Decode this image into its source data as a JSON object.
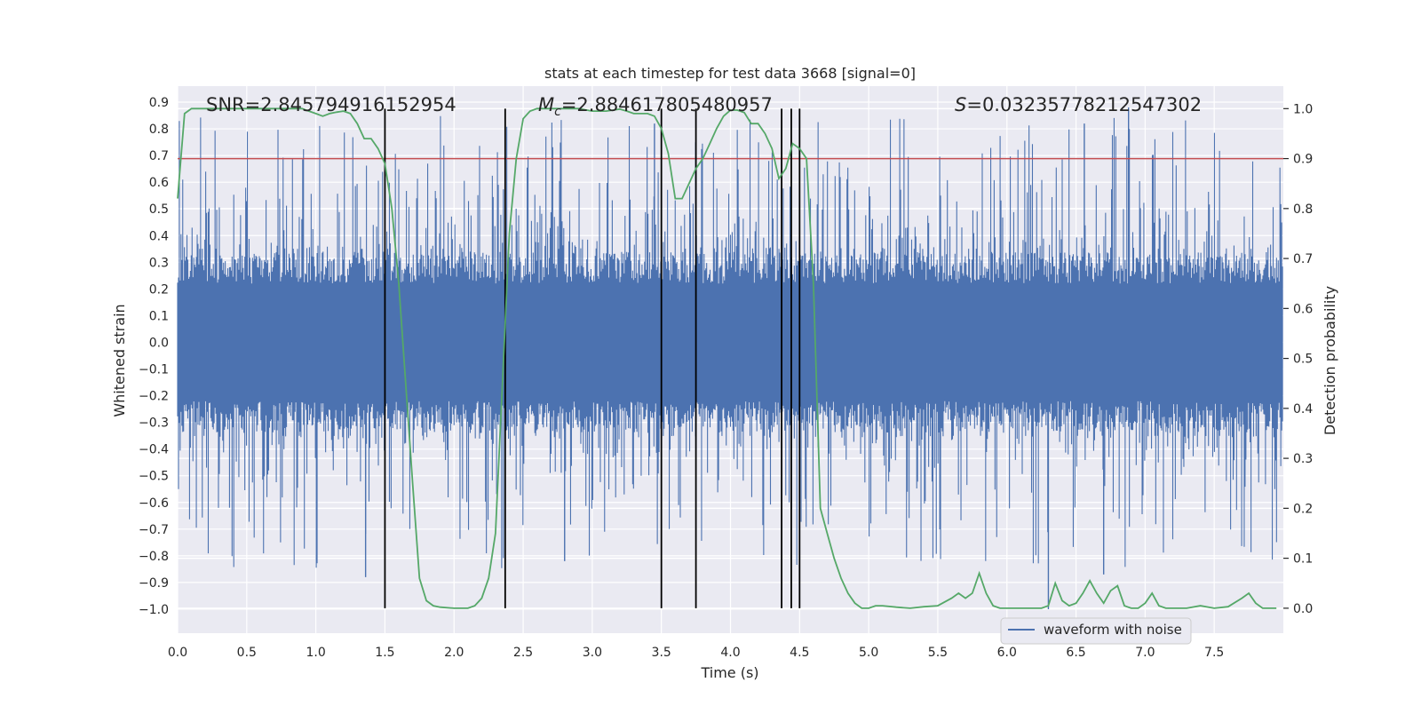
{
  "chart_data": {
    "type": "line",
    "title": "stats at each timestep for test data 3668 [signal=0]",
    "xlabel": "Time (s)",
    "ylabel_left": "Whitened strain",
    "ylabel_right": "Detection probability",
    "xlim": [
      0,
      8
    ],
    "ylim_left": [
      -1.09,
      0.96
    ],
    "ylim_right": [
      -0.05,
      1.045
    ],
    "xticks": [
      "0.0",
      "0.5",
      "1.0",
      "1.5",
      "2.0",
      "2.5",
      "3.0",
      "3.5",
      "4.0",
      "4.5",
      "5.0",
      "5.5",
      "6.0",
      "6.5",
      "7.0",
      "7.5"
    ],
    "yticks_left": [
      "0.9",
      "0.8",
      "0.7",
      "0.6",
      "0.5",
      "0.4",
      "0.3",
      "0.2",
      "0.1",
      "0.0",
      "-0.1",
      "-0.2",
      "-0.3",
      "-0.4",
      "-0.5",
      "-0.6",
      "-0.7",
      "-0.8",
      "-0.9",
      "-1.0"
    ],
    "yticks_right": [
      "1.0",
      "0.9",
      "0.8",
      "0.7",
      "0.6",
      "0.5",
      "0.4",
      "0.3",
      "0.2",
      "0.1",
      "0.0"
    ],
    "grid": true,
    "legend_placement": "lower-right",
    "annotations": {
      "snr": "SNR=2.845794916152954",
      "mc_symbol": "M",
      "mc_sub": "c",
      "mc_value": "=2.884617805480957",
      "s_symbol": "S",
      "s_value": "=0.03235778212547302"
    },
    "threshold": 0.9,
    "vlines": [
      1.5,
      2.37,
      3.5,
      3.75,
      4.37,
      4.44,
      4.5
    ],
    "colors": {
      "waveform": "#4c72b0",
      "probability": "#55a868",
      "threshold": "#c44e52",
      "vlines": "#000000",
      "background": "#eaeaf2",
      "grid": "#ffffff"
    },
    "series": [
      {
        "name": "waveform with noise",
        "axis": "left",
        "style": "dense noise, typical amplitude ±0.3, peaks to ±0.88"
      },
      {
        "axis": "right",
        "x": [
          0.0,
          0.05,
          0.1,
          0.15,
          0.2,
          0.3,
          0.4,
          0.5,
          0.6,
          0.7,
          0.8,
          0.9,
          0.95,
          1.0,
          1.05,
          1.1,
          1.15,
          1.2,
          1.25,
          1.3,
          1.35,
          1.4,
          1.45,
          1.5,
          1.55,
          1.6,
          1.65,
          1.7,
          1.75,
          1.8,
          1.85,
          1.9,
          2.0,
          2.1,
          2.15,
          2.2,
          2.25,
          2.3,
          2.35,
          2.4,
          2.45,
          2.5,
          2.55,
          2.6,
          2.7,
          2.8,
          2.9,
          3.0,
          3.1,
          3.2,
          3.25,
          3.3,
          3.4,
          3.45,
          3.5,
          3.55,
          3.6,
          3.65,
          3.7,
          3.75,
          3.8,
          3.85,
          3.9,
          3.95,
          4.0,
          4.05,
          4.1,
          4.15,
          4.2,
          4.25,
          4.3,
          4.35,
          4.4,
          4.45,
          4.5,
          4.55,
          4.6,
          4.65,
          4.7,
          4.75,
          4.8,
          4.85,
          4.9,
          4.95,
          5.0,
          5.05,
          5.1,
          5.2,
          5.3,
          5.4,
          5.5,
          5.6,
          5.65,
          5.7,
          5.75,
          5.8,
          5.85,
          5.9,
          5.95,
          6.0,
          6.1,
          6.2,
          6.25,
          6.3,
          6.35,
          6.4,
          6.45,
          6.5,
          6.55,
          6.6,
          6.65,
          6.7,
          6.75,
          6.8,
          6.85,
          6.9,
          6.95,
          7.0,
          7.05,
          7.1,
          7.15,
          7.2,
          7.3,
          7.4,
          7.5,
          7.6,
          7.7,
          7.75,
          7.8,
          7.85,
          7.9,
          7.95
        ],
        "values": [
          0.82,
          0.99,
          1.0,
          1.0,
          1.0,
          1.0,
          1.0,
          1.0,
          1.0,
          1.0,
          1.0,
          1.0,
          0.995,
          0.99,
          0.985,
          0.99,
          0.993,
          0.995,
          0.99,
          0.97,
          0.94,
          0.94,
          0.92,
          0.89,
          0.8,
          0.65,
          0.45,
          0.25,
          0.06,
          0.015,
          0.005,
          0.002,
          0.0,
          0.0,
          0.005,
          0.02,
          0.06,
          0.15,
          0.45,
          0.75,
          0.9,
          0.98,
          0.995,
          1.0,
          1.0,
          1.0,
          1.0,
          0.995,
          0.995,
          0.999,
          0.995,
          0.99,
          0.99,
          0.985,
          0.96,
          0.91,
          0.82,
          0.82,
          0.85,
          0.88,
          0.9,
          0.93,
          0.96,
          0.985,
          0.997,
          0.997,
          0.992,
          0.97,
          0.97,
          0.95,
          0.92,
          0.86,
          0.88,
          0.93,
          0.92,
          0.9,
          0.65,
          0.2,
          0.15,
          0.1,
          0.06,
          0.03,
          0.01,
          0.0,
          0.0,
          0.005,
          0.005,
          0.002,
          0.0,
          0.003,
          0.005,
          0.02,
          0.03,
          0.02,
          0.03,
          0.07,
          0.03,
          0.005,
          0.0,
          0.0,
          0.0,
          0.0,
          0.0,
          0.005,
          0.05,
          0.015,
          0.005,
          0.01,
          0.03,
          0.055,
          0.03,
          0.01,
          0.035,
          0.045,
          0.005,
          0.0,
          0.0,
          0.01,
          0.03,
          0.005,
          0.0,
          0.0,
          0.0,
          0.005,
          0.0,
          0.003,
          0.02,
          0.03,
          0.01,
          0.0,
          0.0,
          0.0
        ]
      }
    ]
  }
}
